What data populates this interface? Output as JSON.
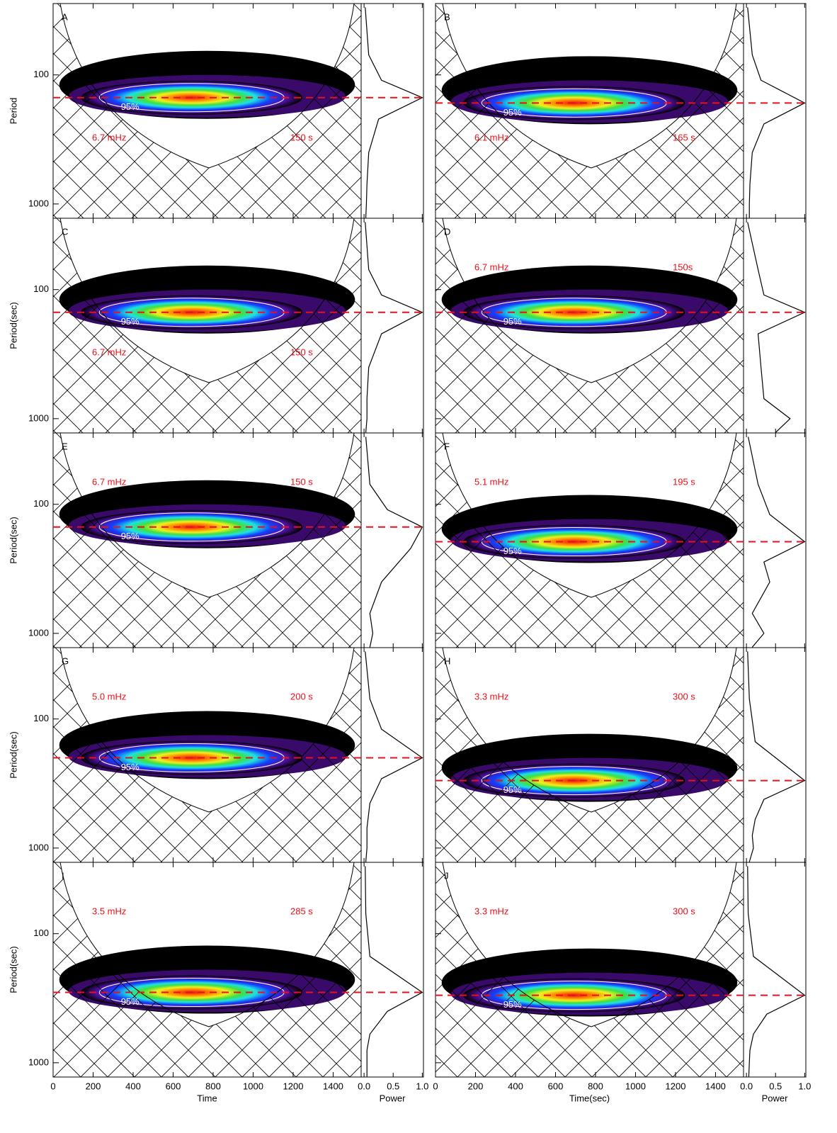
{
  "chart_data": {
    "type": "wavelet-grid",
    "xlim": [
      0,
      1540
    ],
    "xticks": [
      0,
      200,
      400,
      600,
      800,
      1000,
      1200,
      1400
    ],
    "ylim": [
      28,
      1290
    ],
    "yticks": [
      100,
      1000
    ],
    "log_y": true,
    "power_xlim": [
      -0.05,
      1.02
    ],
    "power_xticks": [
      {
        "value": 0,
        "label": "0.0"
      },
      0.5,
      {
        "value": 1,
        "label": "1.0"
      }
    ],
    "panels": [
      {
        "label": "A",
        "freq": "6.7 mHz",
        "period": "150 s",
        "peak_period": 150,
        "sig_label": "95%",
        "ylabel": "Period",
        "power_period": [
          30,
          70,
          110,
          150,
          220,
          400,
          700,
          1000,
          1280
        ],
        "power": [
          0.02,
          0.08,
          0.3,
          1.0,
          0.25,
          0.08,
          0.05,
          0.04,
          0.03
        ]
      },
      {
        "label": "B",
        "freq": "6.1 mHz",
        "period": "165 s",
        "peak_period": 165,
        "sig_label": "95%",
        "power_period": [
          30,
          70,
          110,
          165,
          240,
          400,
          700,
          1000,
          1280
        ],
        "power": [
          0.02,
          0.1,
          0.25,
          1.0,
          0.3,
          0.1,
          0.06,
          0.05,
          0.05
        ]
      },
      {
        "label": "C",
        "freq": "6.7 mHz",
        "period": "150 s",
        "peak_period": 150,
        "sig_label": "95%",
        "ylabel": "Period(sec)",
        "power_period": [
          30,
          70,
          110,
          150,
          220,
          400,
          700,
          1000,
          1280
        ],
        "power": [
          0.02,
          0.08,
          0.3,
          1.0,
          0.3,
          0.08,
          0.05,
          0.05,
          0.03
        ]
      },
      {
        "label": "D",
        "freq": "6.7 mHz",
        "period": "150s",
        "peak_period": 150,
        "sig_label": "95%",
        "power_period": [
          30,
          70,
          110,
          150,
          220,
          400,
          700,
          1000,
          1280
        ],
        "power": [
          0.02,
          0.2,
          0.3,
          1.0,
          0.2,
          0.25,
          0.3,
          0.75,
          0.5
        ]
      },
      {
        "label": "E",
        "freq": "6.7 mHz",
        "period": "150 s",
        "peak_period": 150,
        "sig_label": "95%",
        "ylabel": "Period(sec)",
        "power_period": [
          30,
          70,
          110,
          150,
          220,
          400,
          700,
          1000,
          1280
        ],
        "power": [
          0.03,
          0.1,
          0.4,
          1.0,
          0.8,
          0.3,
          0.1,
          0.15,
          0.1
        ]
      },
      {
        "label": "F",
        "freq": "5.1 mHz",
        "period": "195 s",
        "peak_period": 195,
        "sig_label": "95%",
        "power_period": [
          30,
          70,
          120,
          195,
          280,
          400,
          700,
          1000,
          1280
        ],
        "power": [
          0.03,
          0.2,
          0.4,
          1.0,
          0.3,
          0.4,
          0.1,
          0.3,
          0.1
        ]
      },
      {
        "label": "G",
        "freq": "5.0 mHz",
        "period": "200 s",
        "peak_period": 200,
        "sig_label": "95%",
        "ylabel": "Period(sec)",
        "power_period": [
          30,
          70,
          120,
          200,
          290,
          450,
          700,
          1000,
          1280
        ],
        "power": [
          0.02,
          0.1,
          0.3,
          1.0,
          0.3,
          0.1,
          0.05,
          0.05,
          0.03
        ]
      },
      {
        "label": "H",
        "freq": "3.3 mHz",
        "period": "300 s",
        "peak_period": 300,
        "sig_label": "95%",
        "power_period": [
          30,
          70,
          150,
          300,
          420,
          600,
          800,
          1000,
          1280
        ],
        "power": [
          0.02,
          0.05,
          0.15,
          1.0,
          0.3,
          0.15,
          0.1,
          0.12,
          0.05
        ]
      },
      {
        "label": "I",
        "freq": "3.5 mHz",
        "period": "285 s",
        "peak_period": 285,
        "sig_label": "95%",
        "ylabel": "Period(sec)",
        "xlabel": "Time",
        "power_label": "Power",
        "power_period": [
          30,
          70,
          150,
          285,
          400,
          600,
          800,
          1000,
          1280
        ],
        "power": [
          0.02,
          0.03,
          0.1,
          1.0,
          0.4,
          0.1,
          0.05,
          0.05,
          0.05
        ]
      },
      {
        "label": "J",
        "freq": "3.3 mHz",
        "period": "300 s",
        "peak_period": 300,
        "sig_label": "95%",
        "xlabel": "Time(sec)",
        "power_label": "Power",
        "power_period": [
          30,
          70,
          150,
          300,
          420,
          600,
          800,
          1000,
          1280
        ],
        "power": [
          0.02,
          0.03,
          0.12,
          1.0,
          0.35,
          0.12,
          0.06,
          0.05,
          0.04
        ]
      }
    ]
  }
}
